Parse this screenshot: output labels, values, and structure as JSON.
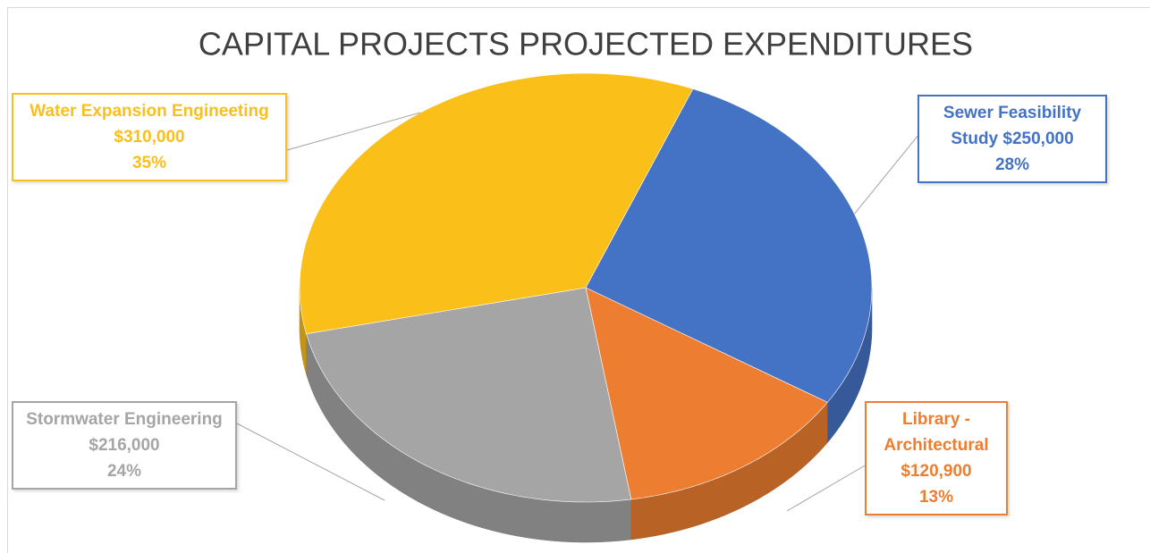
{
  "chart_data": {
    "type": "pie",
    "title": "CAPITAL PROJECTS PROJECTED EXPENDITURES",
    "categories": [
      "Sewer Feasibility Study",
      "Library - Architectural",
      "Stormwater Engineering",
      "Water Expansion Engineeting"
    ],
    "values": [
      250000,
      120900,
      216000,
      310000
    ],
    "value_labels": [
      "$250,000",
      "$120,900",
      "$216,000",
      "$310,000"
    ],
    "percents": [
      28,
      13,
      24,
      35
    ],
    "percent_labels": [
      "28%",
      "13%",
      "24%",
      "35%"
    ],
    "colors": [
      "#4472c4",
      "#ed7d31",
      "#a5a5a5",
      "#fbbf1a"
    ]
  }
}
